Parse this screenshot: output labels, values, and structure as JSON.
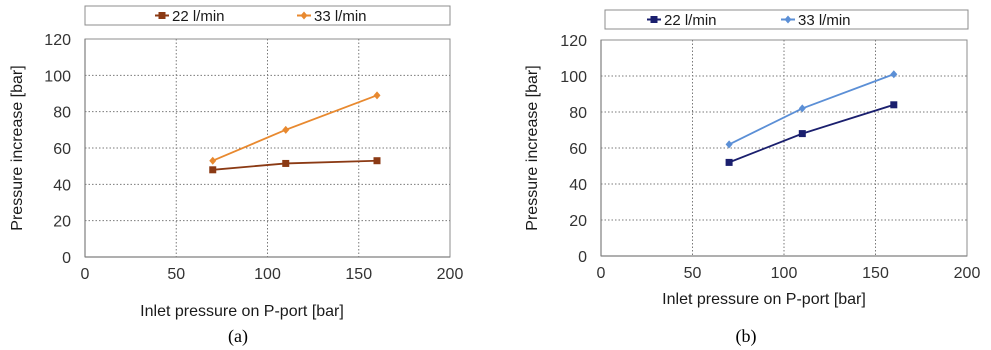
{
  "chart_data": [
    {
      "type": "line",
      "caption": "(a)",
      "xlabel": "Inlet pressure on P-port [bar]",
      "ylabel": "Pressure increase [bar]",
      "xlim": [
        0,
        200
      ],
      "ylim": [
        0,
        120
      ],
      "xticks": [
        0,
        50,
        100,
        150,
        200
      ],
      "yticks": [
        0,
        20,
        40,
        60,
        80,
        100,
        120
      ],
      "grid": true,
      "legend_position": "top",
      "series": [
        {
          "name": "22 l/min",
          "color": "#8b3a14",
          "marker": "square",
          "x": [
            70,
            110,
            160
          ],
          "y": [
            48,
            51.5,
            53
          ]
        },
        {
          "name": "33 l/min",
          "color": "#e8892f",
          "marker": "diamond",
          "x": [
            70,
            110,
            160
          ],
          "y": [
            53,
            70,
            89
          ]
        }
      ]
    },
    {
      "type": "line",
      "caption": "(b)",
      "xlabel": "Inlet pressure on P-port [bar]",
      "ylabel": "Pressure increase [bar]",
      "xlim": [
        0,
        200
      ],
      "ylim": [
        0,
        120
      ],
      "xticks": [
        0,
        50,
        100,
        150,
        200
      ],
      "yticks": [
        0,
        20,
        40,
        60,
        80,
        100,
        120
      ],
      "grid": true,
      "legend_position": "top",
      "series": [
        {
          "name": "22 l/min",
          "color": "#1a1f6e",
          "marker": "square",
          "x": [
            70,
            110,
            160
          ],
          "y": [
            52,
            68,
            84
          ]
        },
        {
          "name": "33 l/min",
          "color": "#5b8fd6",
          "marker": "diamond",
          "x": [
            70,
            110,
            160
          ],
          "y": [
            62,
            82,
            101
          ]
        }
      ]
    }
  ]
}
